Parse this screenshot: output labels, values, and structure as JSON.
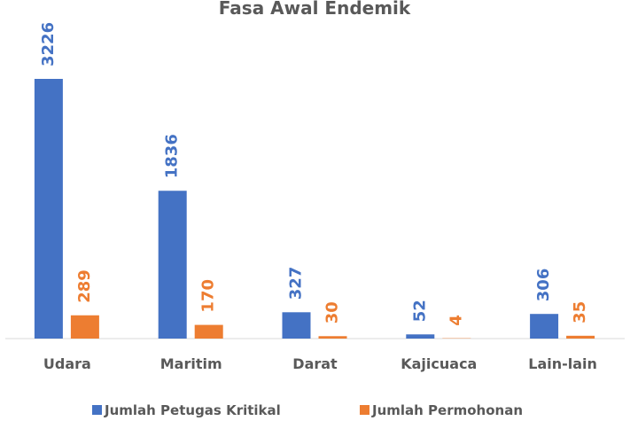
{
  "chart_data": {
    "type": "bar",
    "title": "Fasa Awal Endemik",
    "categories": [
      "Udara",
      "Maritim",
      "Darat",
      "Kajicuaca",
      "Lain-lain"
    ],
    "series": [
      {
        "name": "Jumlah Petugas Kritikal",
        "color": "#4472c4",
        "values": [
          3226,
          1836,
          327,
          52,
          306
        ]
      },
      {
        "name": "Jumlah Permohonan",
        "color": "#ed7d31",
        "values": [
          289,
          170,
          30,
          4,
          35
        ]
      }
    ],
    "legend": "bottom"
  }
}
